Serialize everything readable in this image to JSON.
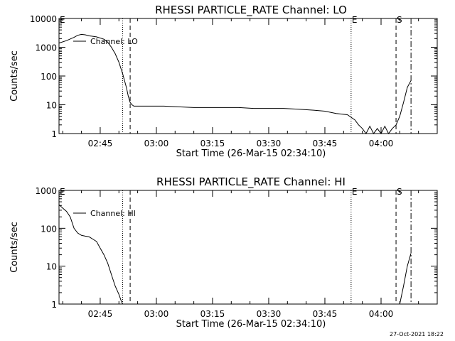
{
  "footer": {
    "timestamp": "27-Oct-2021 18:22"
  },
  "colors": {
    "background": "#ffffff",
    "ink": "#000000"
  },
  "chart_data": [
    {
      "type": "line",
      "title": "RHESSI PARTICLE_RATE Channel: LO",
      "xlabel": "Start Time (26-Mar-15 02:34:10)",
      "ylabel": "Counts/sec",
      "yscale": "log",
      "xlim_minutes": [
        0,
        101
      ],
      "ylim": [
        1,
        10000
      ],
      "ytick_values": [
        1,
        10,
        100,
        1000,
        10000
      ],
      "ytick_labels": [
        "1",
        "10",
        "100",
        "1000",
        "10000"
      ],
      "xtick_minutes": [
        11,
        26,
        41,
        56,
        71,
        86
      ],
      "xtick_labels": [
        "02:45",
        "03:00",
        "03:15",
        "03:30",
        "03:45",
        "04:00"
      ],
      "legend": {
        "label": "Channel: LO",
        "position": "top-left"
      },
      "markers": [
        {
          "label": "E",
          "t": 0,
          "style": "none"
        },
        {
          "label": "",
          "t": 17,
          "style": "dotted"
        },
        {
          "label": "",
          "t": 19,
          "style": "dashed"
        },
        {
          "label": "E",
          "t": 78,
          "style": "dotted"
        },
        {
          "label": "S",
          "t": 90,
          "style": "dashed"
        },
        {
          "label": "",
          "t": 94,
          "style": "dashdot"
        }
      ],
      "series": [
        {
          "name": "Channel: LO",
          "t": [
            0,
            2,
            4,
            5,
            6,
            7,
            8,
            10,
            12,
            13,
            14,
            15,
            16,
            17,
            18,
            18.5,
            19,
            19.5,
            20,
            22,
            25,
            28,
            32,
            36,
            40,
            44,
            48,
            52,
            56,
            60,
            64,
            68,
            71,
            74,
            77,
            79,
            80,
            81,
            82,
            83,
            84,
            85,
            86,
            87,
            88,
            89,
            90,
            91,
            92,
            93,
            94
          ],
          "values": [
            1400,
            1700,
            2200,
            2600,
            2800,
            2700,
            2500,
            2300,
            1900,
            1500,
            1000,
            600,
            300,
            120,
            40,
            20,
            12,
            10,
            9,
            9,
            9,
            9,
            8.5,
            8,
            8,
            8,
            8,
            7.5,
            7.5,
            7.5,
            7,
            6.5,
            6,
            5,
            4.5,
            3,
            2,
            1.5,
            1,
            1.8,
            1,
            1.5,
            1,
            1.8,
            1,
            1.5,
            2,
            4,
            12,
            40,
            70
          ]
        }
      ]
    },
    {
      "type": "line",
      "title": "RHESSI PARTICLE_RATE Channel: HI",
      "xlabel": "Start Time (26-Mar-15 02:34:10)",
      "ylabel": "Counts/sec",
      "yscale": "log",
      "xlim_minutes": [
        0,
        101
      ],
      "ylim": [
        1,
        1000
      ],
      "ytick_values": [
        1,
        10,
        100,
        1000
      ],
      "ytick_labels": [
        "1",
        "10",
        "100",
        "1000"
      ],
      "xtick_minutes": [
        11,
        26,
        41,
        56,
        71,
        86
      ],
      "xtick_labels": [
        "02:45",
        "03:00",
        "03:15",
        "03:30",
        "03:45",
        "04:00"
      ],
      "legend": {
        "label": "Channel: HI",
        "position": "top-left"
      },
      "markers": [
        {
          "label": "E",
          "t": 0,
          "style": "none"
        },
        {
          "label": "",
          "t": 17,
          "style": "dotted"
        },
        {
          "label": "",
          "t": 19,
          "style": "dashed"
        },
        {
          "label": "E",
          "t": 78,
          "style": "dotted"
        },
        {
          "label": "S",
          "t": 90,
          "style": "dashed"
        },
        {
          "label": "",
          "t": 94,
          "style": "dashdot"
        }
      ],
      "series": [
        {
          "name": "Channel: HI",
          "t": [
            0,
            1,
            2,
            3,
            4,
            5,
            6,
            7,
            8,
            9,
            10,
            11,
            12,
            13,
            14,
            15,
            16,
            16.5,
            17,
            91,
            92,
            93,
            94
          ],
          "values": [
            420,
            340,
            280,
            200,
            100,
            75,
            65,
            62,
            60,
            52,
            45,
            30,
            20,
            12,
            6,
            3,
            1.8,
            1.3,
            1,
            1,
            3,
            10,
            22
          ]
        }
      ]
    }
  ]
}
